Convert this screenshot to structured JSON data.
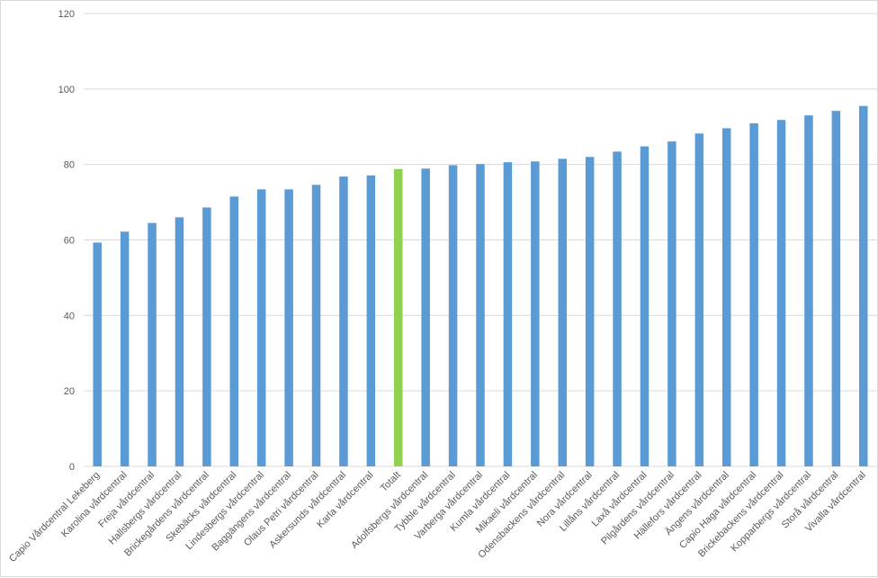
{
  "chart_data": {
    "type": "bar",
    "title": "",
    "xlabel": "",
    "ylabel": "",
    "ylim": [
      0,
      120
    ],
    "yticks": [
      0,
      20,
      40,
      60,
      80,
      100,
      120
    ],
    "grid": true,
    "legend": "none",
    "colors": {
      "default": "#5b9bd5",
      "highlight": "#92d050"
    },
    "highlight_category": "Totalt",
    "categories": [
      "Capio Vårdcentral Lekeberg",
      "Karolina vårdcentral",
      "Freja vårdcentral",
      "Hallsbergs vårdcentral",
      "Brickegårdens vårdcentral",
      "Skebäcks vårdcentral",
      "Lindesbergs vårdcentral",
      "Baggängens vårdcentral",
      "Olaus Petri vårdcentral",
      "Askersunds vårdcentral",
      "Karla vårdcentral",
      "Totalt",
      "Adolfsbergs vårdcentral",
      "Tybble vårdcentral",
      "Varberga vårdcentral",
      "Kumla vårdcentral",
      "Mikaeli vårdcentral",
      "Odensbackens vårdcentral",
      "Nora vårdcentral",
      "Lillåns vårdcentral",
      "Laxå vårdcentral",
      "Pilgårdens vårdcentral",
      "Hällefors vårdcentral",
      "Ängens vårdcentral",
      "Capio Haga vårdcentral",
      "Brickebackens vårdcentral",
      "Kopparbergs vårdcentral",
      "Storå vårdcentral",
      "Vivalla vårdcentral"
    ],
    "values": [
      59.3,
      62.2,
      64.5,
      66.0,
      68.6,
      71.5,
      73.4,
      73.4,
      74.6,
      76.8,
      77.1,
      78.8,
      78.9,
      79.8,
      80.1,
      80.6,
      80.8,
      81.5,
      82.0,
      83.4,
      84.8,
      86.1,
      88.2,
      89.6,
      90.9,
      91.8,
      93.0,
      94.2,
      95.5
    ]
  }
}
